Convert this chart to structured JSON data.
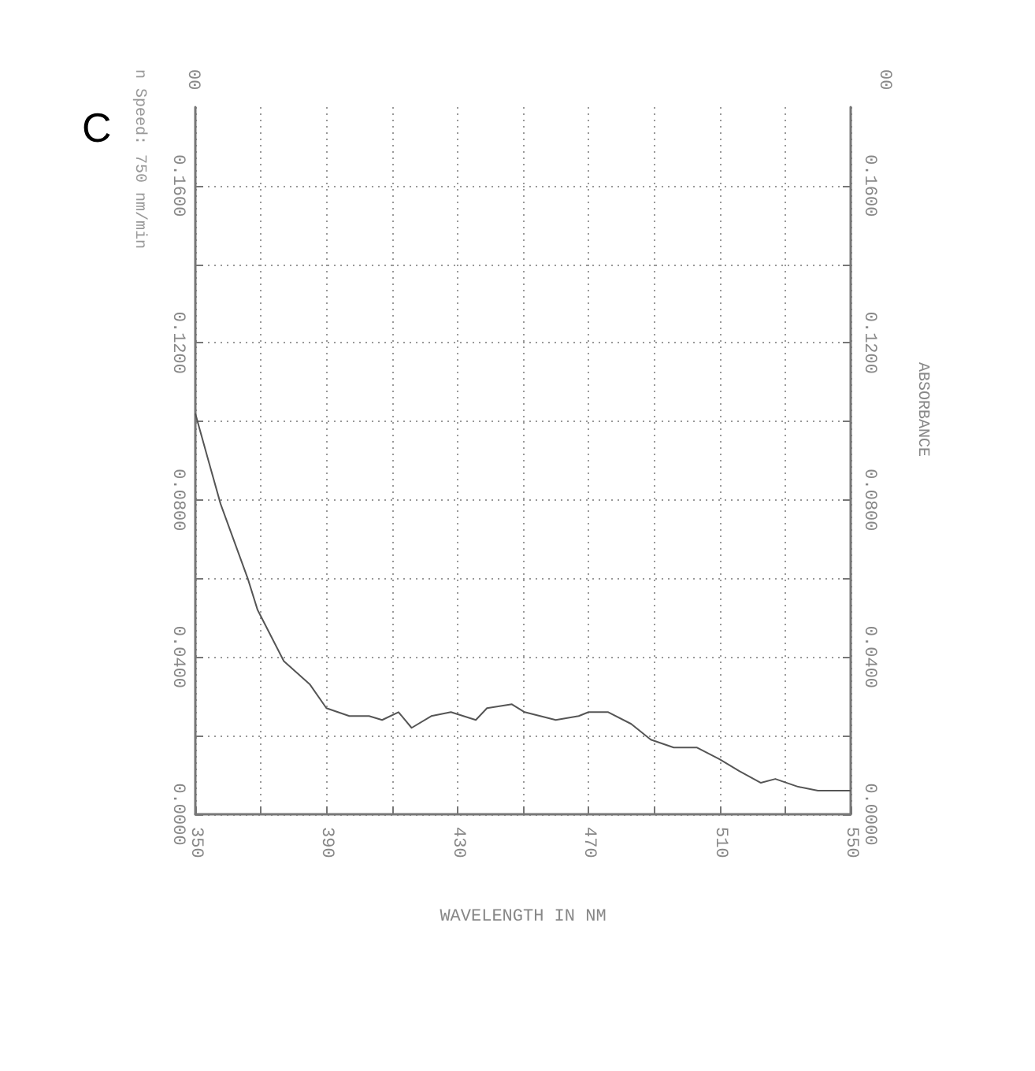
{
  "chart_data": {
    "type": "line",
    "xlabel": "WAVELENGTH IN NM",
    "y2label": "ABSORBANCE",
    "annotations": [
      "C",
      "n Speed: 750 nm/min",
      "00",
      "00"
    ],
    "x": [
      350,
      354,
      357.7,
      366,
      369,
      377,
      385,
      390,
      397,
      403,
      407,
      412,
      416,
      422,
      428,
      435.6,
      439,
      446.6,
      450.5,
      460,
      467,
      470,
      476,
      483,
      489,
      496,
      503,
      510,
      516,
      522.6,
      527,
      534,
      540,
      548.6,
      550
    ],
    "series": [
      {
        "color": "#555555",
        "values": [
          0.102,
          0.09,
          0.079,
          0.06,
          0.052,
          0.039,
          0.033,
          0.027,
          0.025,
          0.025,
          0.024,
          0.026,
          0.022,
          0.025,
          0.026,
          0.024,
          0.027,
          0.028,
          0.026,
          0.024,
          0.025,
          0.026,
          0.026,
          0.023,
          0.019,
          0.017,
          0.017,
          0.014,
          0.011,
          0.008,
          0.009,
          0.007,
          0.006,
          0.006,
          0.006
        ]
      }
    ],
    "xlim": [
      350,
      550
    ],
    "xticks": [
      350,
      {
        "value": 370,
        "label": null
      },
      390,
      {
        "value": 410,
        "label": null
      },
      430,
      {
        "value": 450,
        "label": null
      },
      470,
      {
        "value": 490,
        "label": null
      },
      510,
      {
        "value": 530,
        "label": null
      },
      550
    ],
    "ylim": [
      0,
      0.18
    ],
    "yticks": [
      {
        "value": 0,
        "label": "0.0000"
      },
      {
        "value": 0.02,
        "label": null
      },
      {
        "value": 0.04,
        "label": "0.0400"
      },
      {
        "value": 0.06,
        "label": null
      },
      {
        "value": 0.08,
        "label": "0.0800"
      },
      {
        "value": 0.1,
        "label": null
      },
      {
        "value": 0.12,
        "label": "0.1200"
      },
      {
        "value": 0.14,
        "label": null
      },
      {
        "value": 0.16,
        "label": "0.1600"
      }
    ],
    "y2lim": [
      0,
      0.18
    ],
    "y2ticks": [
      {
        "value": 0,
        "label": "0.0000"
      },
      {
        "value": 0.02,
        "label": null
      },
      {
        "value": 0.04,
        "label": "0.0400"
      },
      {
        "value": 0.06,
        "label": null
      },
      {
        "value": 0.08,
        "label": "0.0800"
      },
      {
        "value": 0.1,
        "label": null
      },
      {
        "value": 0.12,
        "label": "0.1200"
      },
      {
        "value": 0.14,
        "label": null
      },
      {
        "value": 0.16,
        "label": "0.1600"
      }
    ],
    "grid": true,
    "marker": "none",
    "line_style": "solid"
  }
}
